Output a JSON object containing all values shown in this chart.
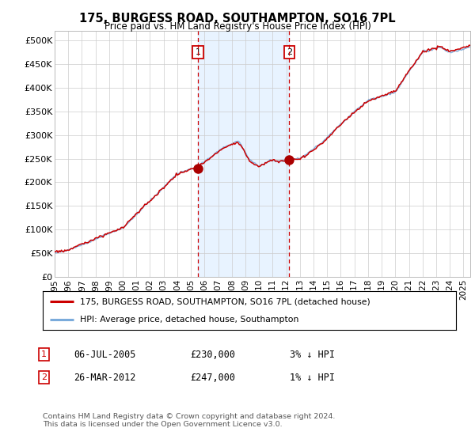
{
  "title": "175, BURGESS ROAD, SOUTHAMPTON, SO16 7PL",
  "subtitle": "Price paid vs. HM Land Registry's House Price Index (HPI)",
  "ylabel_ticks": [
    "£0",
    "£50K",
    "£100K",
    "£150K",
    "£200K",
    "£250K",
    "£300K",
    "£350K",
    "£400K",
    "£450K",
    "£500K"
  ],
  "ytick_values": [
    0,
    50000,
    100000,
    150000,
    200000,
    250000,
    300000,
    350000,
    400000,
    450000,
    500000
  ],
  "ylim": [
    0,
    520000
  ],
  "xlim_start": 1995.0,
  "xlim_end": 2025.5,
  "xtick_labels": [
    "1995",
    "1996",
    "1997",
    "1998",
    "1999",
    "2000",
    "2001",
    "2002",
    "2003",
    "2004",
    "2005",
    "2006",
    "2007",
    "2008",
    "2009",
    "2010",
    "2011",
    "2012",
    "2013",
    "2014",
    "2015",
    "2016",
    "2017",
    "2018",
    "2019",
    "2020",
    "2021",
    "2022",
    "2023",
    "2024",
    "2025"
  ],
  "xtick_values": [
    1995,
    1996,
    1997,
    1998,
    1999,
    2000,
    2001,
    2002,
    2003,
    2004,
    2005,
    2006,
    2007,
    2008,
    2009,
    2010,
    2011,
    2012,
    2013,
    2014,
    2015,
    2016,
    2017,
    2018,
    2019,
    2020,
    2021,
    2022,
    2023,
    2024,
    2025
  ],
  "hpi_color": "#7aabdb",
  "price_color": "#cc0000",
  "marker_color": "#aa0000",
  "sale1_x": 2005.52,
  "sale1_y": 230000,
  "sale1_label": "1",
  "sale1_date": "06-JUL-2005",
  "sale1_price": "£230,000",
  "sale1_hpi": "3% ↓ HPI",
  "sale2_x": 2012.22,
  "sale2_y": 247000,
  "sale2_label": "2",
  "sale2_date": "26-MAR-2012",
  "sale2_price": "£247,000",
  "sale2_hpi": "1% ↓ HPI",
  "vline1_x": 2005.52,
  "vline2_x": 2012.22,
  "vline_color": "#cc0000",
  "vline_shade_color": "#ddeeff",
  "legend_line1": "175, BURGESS ROAD, SOUTHAMPTON, SO16 7PL (detached house)",
  "legend_line2": "HPI: Average price, detached house, Southampton",
  "footer": "Contains HM Land Registry data © Crown copyright and database right 2024.\nThis data is licensed under the Open Government Licence v3.0.",
  "background_color": "#ffffff",
  "plot_bg_color": "#ffffff",
  "grid_color": "#cccccc"
}
